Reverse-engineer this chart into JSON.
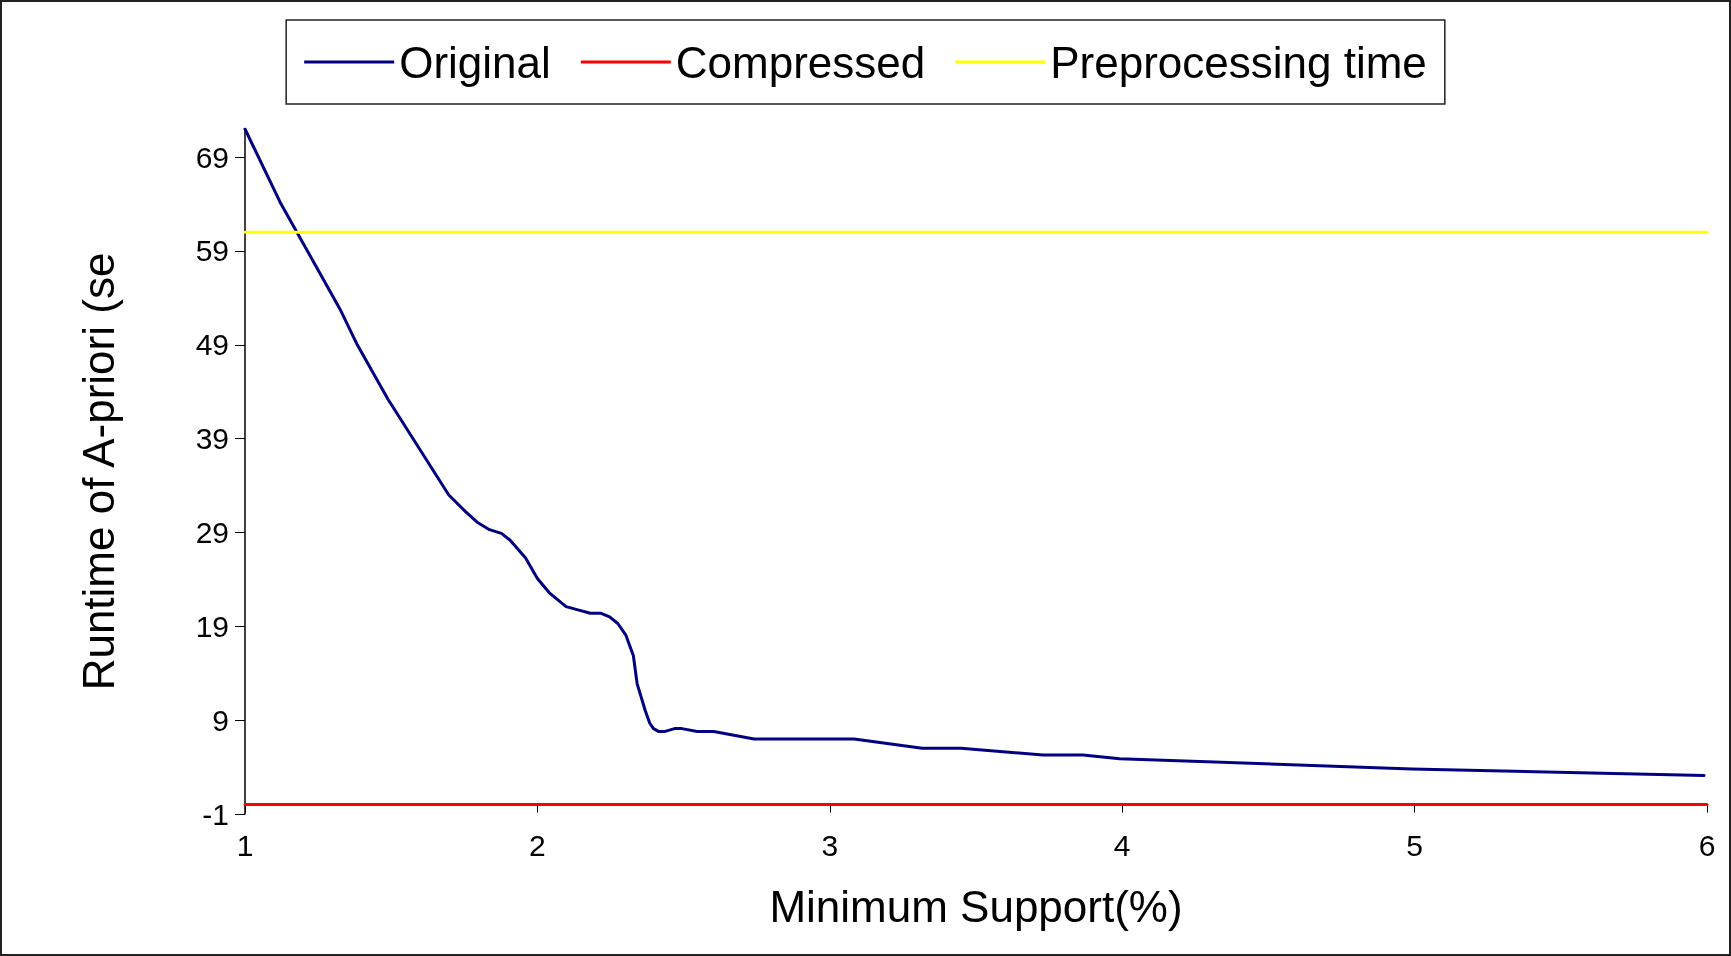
{
  "chart_data": {
    "type": "line",
    "xlabel": "Minimum Support(%)",
    "ylabel": "Runtime of A-priori (se",
    "xlim": [
      1,
      6
    ],
    "xticks": [
      1,
      2,
      3,
      4,
      5,
      6
    ],
    "ylim": [
      -1,
      72
    ],
    "yticks": [
      -1,
      9,
      19,
      29,
      39,
      49,
      59,
      69
    ],
    "grid": false,
    "legend": "top",
    "marker": "none",
    "line_style": "solid",
    "series": [
      {
        "name": "Original",
        "color": "#000080",
        "x": [
          1,
          1.12,
          1.325,
          1.384,
          1.489,
          1.697,
          1.755,
          1.794,
          1.836,
          1.877,
          1.906,
          1.959,
          2.0,
          2.04,
          2.098,
          2.145,
          2.181,
          2.216,
          2.247,
          2.275,
          2.302,
          2.328,
          2.341,
          2.369,
          2.384,
          2.397,
          2.414,
          2.437,
          2.469,
          2.494,
          2.547,
          2.603,
          2.741,
          3.083,
          3.316,
          3.449,
          3.729,
          3.866,
          3.991,
          4.99,
          5.99
        ],
        "values": [
          72,
          64.2,
          52.8,
          49,
          43.2,
          33,
          31.2,
          30.1,
          29.3,
          28.9,
          28.2,
          26.3,
          24.1,
          22.6,
          21.1,
          20.7,
          20.4,
          20.4,
          20,
          19.3,
          18.1,
          15.9,
          12.9,
          10,
          8.7,
          8.1,
          7.8,
          7.8,
          8.1,
          8.1,
          7.8,
          7.8,
          7,
          7,
          6,
          6,
          5.3,
          5.3,
          4.9,
          3.8,
          3.1
        ]
      },
      {
        "name": "Compressed",
        "color": "#ff0000",
        "x": [
          1,
          6
        ],
        "values": [
          0,
          0
        ]
      },
      {
        "name": "Preprocessing time",
        "color": "#ffff00",
        "x": [
          1,
          6
        ],
        "values": [
          61,
          61
        ]
      }
    ]
  }
}
